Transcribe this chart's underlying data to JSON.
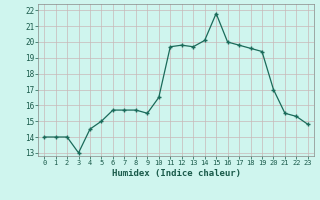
{
  "x": [
    0,
    1,
    2,
    3,
    4,
    5,
    6,
    7,
    8,
    9,
    10,
    11,
    12,
    13,
    14,
    15,
    16,
    17,
    18,
    19,
    20,
    21,
    22,
    23
  ],
  "y": [
    14,
    14,
    14,
    13,
    14.5,
    15,
    15.7,
    15.7,
    15.7,
    15.5,
    16.5,
    19.7,
    19.8,
    19.7,
    20.1,
    21.8,
    20.0,
    19.8,
    19.6,
    19.4,
    17.0,
    15.5,
    15.3,
    14.8
  ],
  "line_color": "#1a6b5a",
  "marker": "+",
  "marker_size": 3,
  "xlabel": "Humidex (Indice chaleur)",
  "bg_color": "#cff5ee",
  "grid_color": "#c8b8b8",
  "ylim": [
    12.8,
    22.4
  ],
  "xlim": [
    -0.5,
    23.5
  ],
  "yticks": [
    13,
    14,
    15,
    16,
    17,
    18,
    19,
    20,
    21,
    22
  ],
  "xticks": [
    0,
    1,
    2,
    3,
    4,
    5,
    6,
    7,
    8,
    9,
    10,
    11,
    12,
    13,
    14,
    15,
    16,
    17,
    18,
    19,
    20,
    21,
    22,
    23
  ]
}
